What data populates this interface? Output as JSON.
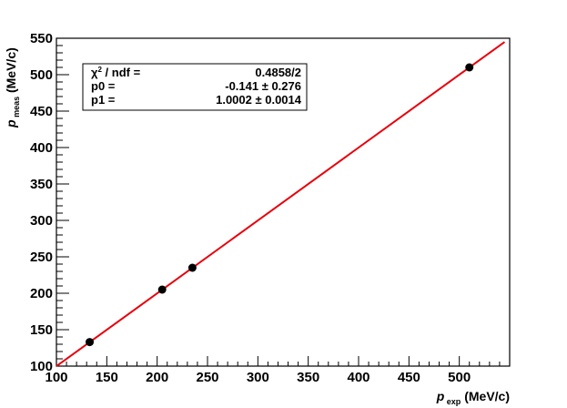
{
  "chart_data": {
    "type": "scatter",
    "xlabel": {
      "main": "p",
      "sub": "exp",
      "unit": "(MeV/c)"
    },
    "ylabel": {
      "main": "p",
      "sub": "meas",
      "unit": "(MeV/c)"
    },
    "xlim": [
      100,
      550
    ],
    "ylim": [
      100,
      550
    ],
    "x_ticks": [
      100,
      150,
      200,
      250,
      300,
      350,
      400,
      450,
      500
    ],
    "y_ticks": [
      100,
      150,
      200,
      250,
      300,
      350,
      400,
      450,
      500,
      550
    ],
    "grid": false,
    "series": [
      {
        "x": [
          133,
          205,
          235,
          510
        ],
        "y": [
          133,
          205,
          235,
          510
        ],
        "marker_color": "#000000"
      }
    ],
    "fit": {
      "p0": -0.141,
      "p1": 1.0002,
      "x_range": [
        100,
        545
      ],
      "color": "#e8000b"
    },
    "stats": {
      "rows": [
        {
          "label_prefix": "χ",
          "label_sup": "2",
          "label_suffix": " / ndf =",
          "value": "0.4858/2"
        },
        {
          "label_prefix": "p0 =",
          "label_sup": "",
          "label_suffix": "",
          "value": "-0.141 ± 0.276"
        },
        {
          "label_prefix": "p1 =",
          "label_sup": "",
          "label_suffix": "",
          "value": "1.0002 ± 0.0014"
        }
      ],
      "placement": "top-left"
    }
  }
}
